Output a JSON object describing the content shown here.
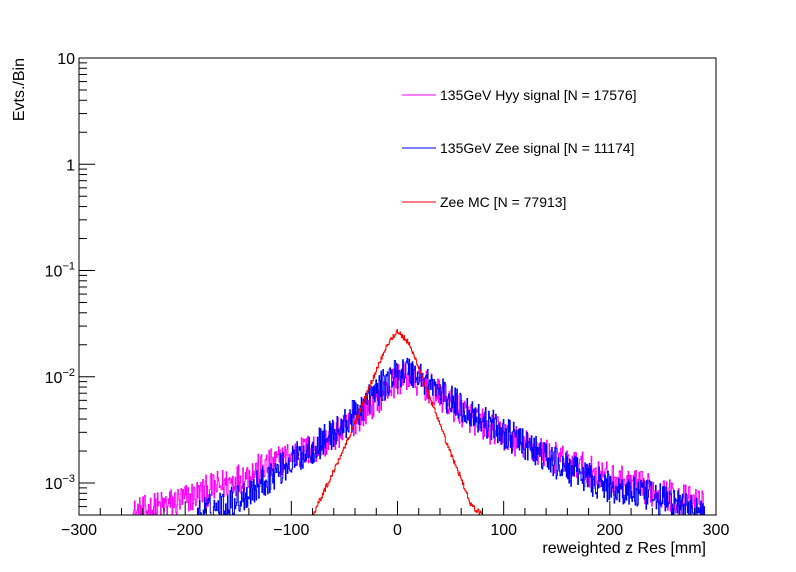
{
  "chart_data": {
    "type": "line",
    "title": "",
    "xlabel": "reweighted z Res [mm]",
    "ylabel": "Evts./Bin",
    "xlim": [
      -300,
      300
    ],
    "ylim": [
      0.0005,
      10
    ],
    "ylog": true,
    "grid": false,
    "legend_position": "top-right",
    "x_ticks": [
      {
        "value": -300,
        "label": "−300"
      },
      {
        "value": -200,
        "label": "−200"
      },
      {
        "value": -100,
        "label": "−100"
      },
      {
        "value": 0,
        "label": "0"
      },
      {
        "value": 100,
        "label": "100"
      },
      {
        "value": 200,
        "label": "200"
      },
      {
        "value": 300,
        "label": "300"
      }
    ],
    "y_ticks": [
      {
        "value": 0.001,
        "base": "10",
        "exp": "−3"
      },
      {
        "value": 0.01,
        "base": "10",
        "exp": "−2"
      },
      {
        "value": 0.1,
        "base": "10",
        "exp": "−1"
      },
      {
        "value": 1,
        "base": "1",
        "exp": ""
      },
      {
        "value": 10,
        "base": "10",
        "exp": ""
      }
    ],
    "series": [
      {
        "name": "135GeV Hyy signal [N = 17576]",
        "color": "#ff00ff",
        "x": [
          -250,
          -200,
          -150,
          -100,
          -75,
          -50,
          -25,
          0,
          10,
          25,
          50,
          75,
          100,
          150,
          200,
          250,
          290
        ],
        "y": [
          0.0005,
          0.0007,
          0.0011,
          0.0018,
          0.0022,
          0.0032,
          0.0055,
          0.0095,
          0.01,
          0.0085,
          0.0055,
          0.0038,
          0.0028,
          0.0017,
          0.0011,
          0.0008,
          0.0006
        ]
      },
      {
        "name": "135GeV Zee signal [N = 11174]",
        "color": "#0000ff",
        "x": [
          -190,
          -150,
          -100,
          -75,
          -50,
          -25,
          0,
          10,
          25,
          50,
          75,
          100,
          150,
          200,
          250,
          290
        ],
        "y": [
          0.0005,
          0.0007,
          0.0016,
          0.0023,
          0.0035,
          0.0065,
          0.011,
          0.0115,
          0.0095,
          0.006,
          0.0042,
          0.003,
          0.0015,
          0.0009,
          0.0007,
          0.0005
        ]
      },
      {
        "name": "Zee MC [N = 77913]",
        "color": "#ff0000",
        "x": [
          -80,
          -70,
          -60,
          -50,
          -40,
          -30,
          -20,
          -10,
          0,
          10,
          20,
          30,
          40,
          50,
          60,
          70,
          80
        ],
        "y": [
          0.0005,
          0.0008,
          0.0013,
          0.0022,
          0.0037,
          0.0065,
          0.0115,
          0.02,
          0.027,
          0.021,
          0.0125,
          0.0065,
          0.0035,
          0.0019,
          0.0011,
          0.0006,
          0.0005
        ]
      }
    ]
  }
}
